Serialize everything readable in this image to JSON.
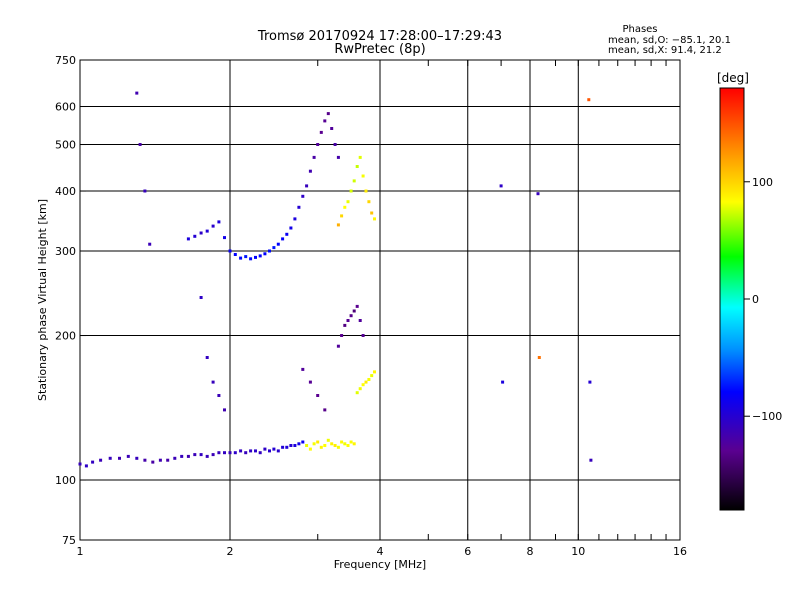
{
  "chart_data": {
    "type": "scatter",
    "title": "Tromsø 20170924 17:28:00–17:29:43",
    "subtitle": "RwPretec (8p)",
    "xlabel": "Frequency [MHz]",
    "ylabel": "Stationary phase Virtual Height [km]",
    "x_scale": "log",
    "y_scale": "log",
    "xlim": [
      1,
      16
    ],
    "ylim": [
      75,
      750
    ],
    "x_ticks": [
      1,
      2,
      4,
      6,
      8,
      10,
      16
    ],
    "x_tick_labels": [
      "1",
      "2",
      "4",
      "6",
      "8",
      "10",
      "16"
    ],
    "y_ticks": [
      75,
      100,
      200,
      300,
      400,
      500,
      600,
      750
    ],
    "y_tick_labels": [
      "75",
      "100",
      "200",
      "300",
      "400",
      "500",
      "600",
      "750"
    ],
    "grid": true,
    "phases_box": {
      "title": "Phases",
      "line1": "mean, sd,O: −85.1, 20.1",
      "line2": "mean, sd,X:  91.4, 21.2"
    },
    "colorbar": {
      "label": "[deg]",
      "range": [
        -180,
        180
      ],
      "ticks": [
        100,
        0,
        -100
      ],
      "tick_labels": [
        "100",
        "0",
        "−100"
      ],
      "colormap": "rainbow"
    },
    "series": [
      {
        "trace": "e_region_o",
        "x": [
          1.0,
          1.03,
          1.06,
          1.1,
          1.15,
          1.2,
          1.25,
          1.3,
          1.35,
          1.4,
          1.45,
          1.5,
          1.55,
          1.6,
          1.65,
          1.7,
          1.75,
          1.8,
          1.85,
          1.9,
          1.95,
          2.0,
          2.05,
          2.1,
          2.15,
          2.2,
          2.25,
          2.3,
          2.35,
          2.4,
          2.45,
          2.5,
          2.55,
          2.6,
          2.65,
          2.7,
          2.75,
          2.8
        ],
        "y": [
          108,
          107,
          109,
          110,
          111,
          111,
          112,
          111,
          110,
          109,
          110,
          110,
          111,
          112,
          112,
          113,
          113,
          112,
          113,
          114,
          114,
          114,
          114,
          115,
          114,
          115,
          115,
          114,
          116,
          115,
          116,
          115,
          117,
          117,
          118,
          118,
          119,
          120
        ],
        "phase": [
          -110,
          -105,
          -108,
          -112,
          -110,
          -115,
          -112,
          -110,
          -118,
          -120,
          -115,
          -118,
          -112,
          -110,
          -115,
          -112,
          -108,
          -110,
          -112,
          -110,
          -108,
          -110,
          -105,
          -108,
          -110,
          -106,
          -104,
          -108,
          -105,
          -102,
          -100,
          -102,
          -98,
          -96,
          -100,
          -95,
          -90,
          -85
        ]
      },
      {
        "trace": "e_region_x",
        "x": [
          2.85,
          2.9,
          2.95,
          3.0,
          3.05,
          3.1,
          3.15,
          3.2,
          3.25,
          3.3,
          3.35,
          3.4,
          3.45,
          3.5,
          3.55
        ],
        "y": [
          118,
          116,
          119,
          120,
          117,
          118,
          121,
          119,
          118,
          117,
          120,
          119,
          118,
          120,
          119
        ],
        "phase": [
          95,
          100,
          98,
          105,
          102,
          100,
          96,
          103,
          104,
          98,
          101,
          97,
          100,
          99,
          102
        ]
      },
      {
        "trace": "f_region_o",
        "x": [
          1.65,
          1.7,
          1.75,
          1.8,
          1.85,
          1.9,
          1.95,
          2.0,
          2.05,
          2.1,
          2.15,
          2.2,
          2.25,
          2.3,
          2.35,
          2.4,
          2.45,
          2.5,
          2.55,
          2.6,
          2.65,
          2.7,
          2.75,
          2.8,
          2.85,
          2.9,
          2.95,
          3.0,
          3.05,
          3.1,
          3.15,
          3.2,
          3.25,
          3.3
        ],
        "y": [
          318,
          322,
          327,
          330,
          338,
          345,
          320,
          300,
          295,
          290,
          292,
          289,
          291,
          293,
          296,
          300,
          305,
          310,
          318,
          325,
          335,
          350,
          370,
          390,
          410,
          440,
          470,
          500,
          530,
          560,
          580,
          540,
          500,
          470
        ],
        "phase": [
          -95,
          -100,
          -105,
          -98,
          -102,
          -96,
          -90,
          -85,
          -80,
          -78,
          -75,
          -78,
          -80,
          -82,
          -80,
          -78,
          -75,
          -80,
          -82,
          -85,
          -90,
          -95,
          -100,
          -105,
          -110,
          -115,
          -120,
          -125,
          -130,
          -128,
          -132,
          -125,
          -120,
          -118
        ]
      },
      {
        "trace": "f_region_x",
        "x": [
          3.3,
          3.35,
          3.4,
          3.45,
          3.5,
          3.55,
          3.6,
          3.65,
          3.7,
          3.75,
          3.8,
          3.85,
          3.9
        ],
        "y": [
          340,
          355,
          370,
          380,
          400,
          420,
          450,
          470,
          430,
          400,
          380,
          360,
          350
        ],
        "phase": [
          120,
          110,
          100,
          95,
          90,
          88,
          85,
          92,
          98,
          105,
          110,
          115,
          102
        ]
      },
      {
        "trace": "mid_cluster_o",
        "x": [
          3.3,
          3.35,
          3.4,
          3.45,
          3.5,
          3.55,
          3.6,
          3.65,
          3.7
        ],
        "y": [
          190,
          200,
          210,
          215,
          220,
          225,
          230,
          215,
          200
        ],
        "phase": [
          -125,
          -130,
          -135,
          -128,
          -132,
          -138,
          -130,
          -125,
          -128
        ]
      },
      {
        "trace": "mid_cluster_x",
        "x": [
          3.6,
          3.65,
          3.7,
          3.75,
          3.8,
          3.85,
          3.9
        ],
        "y": [
          152,
          155,
          158,
          160,
          162,
          165,
          168
        ],
        "phase": [
          92,
          96,
          100,
          104,
          98,
          95,
          102
        ]
      },
      {
        "trace": "scattered",
        "x": [
          1.3,
          1.32,
          1.35,
          1.38,
          1.75,
          1.8,
          1.85,
          1.9,
          1.95,
          2.8,
          2.9,
          3.0,
          3.1,
          7.0,
          7.05,
          8.3,
          8.35,
          10.5,
          10.55,
          10.6
        ],
        "y": [
          640,
          500,
          400,
          310,
          240,
          180,
          160,
          150,
          140,
          170,
          160,
          150,
          140,
          410,
          160,
          395,
          180,
          620,
          160,
          110
        ],
        "phase": [
          -115,
          -120,
          -110,
          -112,
          -105,
          -108,
          -110,
          -112,
          -115,
          -125,
          -128,
          -130,
          -132,
          -105,
          -95,
          -110,
          140,
          150,
          -100,
          -110
        ]
      }
    ]
  }
}
